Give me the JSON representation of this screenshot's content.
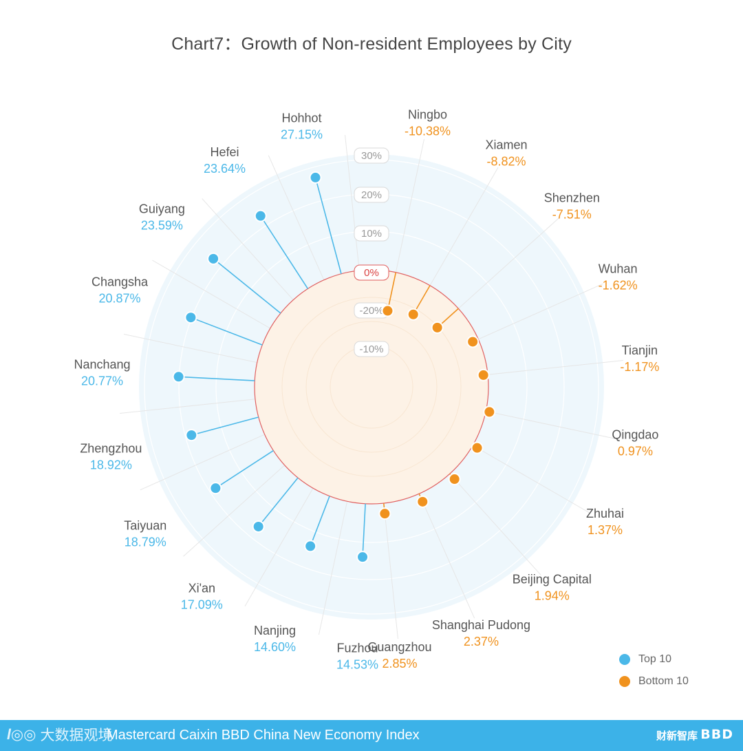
{
  "chart_data": {
    "type": "radial-lollipop",
    "title": "Chart7：Growth of Non-resident Employees by City",
    "axis_labels": [
      "30%",
      "20%",
      "10%",
      "0%",
      "-20%",
      "-10%"
    ],
    "rlim": [
      -30,
      30
    ],
    "series": [
      {
        "name": "Top 10",
        "color": "#4bb8e8",
        "points": [
          {
            "city": "Hohhot",
            "value": 27.15,
            "label": "27.15%"
          },
          {
            "city": "Hefei",
            "value": 23.64,
            "label": "23.64%"
          },
          {
            "city": "Guiyang",
            "value": 23.59,
            "label": "23.59%"
          },
          {
            "city": "Changsha",
            "value": 20.87,
            "label": "20.87%"
          },
          {
            "city": "Nanchang",
            "value": 20.77,
            "label": "20.77%"
          },
          {
            "city": "Zhengzhou",
            "value": 18.92,
            "label": "18.92%"
          },
          {
            "city": "Taiyuan",
            "value": 18.79,
            "label": "18.79%"
          },
          {
            "city": "Xi'an",
            "value": 17.09,
            "label": "17.09%"
          },
          {
            "city": "Nanjing",
            "value": 14.6,
            "label": "14.60%"
          },
          {
            "city": "Fuzhou",
            "value": 14.53,
            "label": "14.53%"
          }
        ]
      },
      {
        "name": "Bottom 10",
        "color": "#f0921e",
        "points": [
          {
            "city": "Ningbo",
            "value": -10.38,
            "label": "-10.38%"
          },
          {
            "city": "Xiamen",
            "value": -8.82,
            "label": "-8.82%"
          },
          {
            "city": "Shenzhen",
            "value": -7.51,
            "label": "-7.51%"
          },
          {
            "city": "Wuhan",
            "value": -1.62,
            "label": "-1.62%"
          },
          {
            "city": "Tianjin",
            "value": -1.17,
            "label": "-1.17%"
          },
          {
            "city": "Qingdao",
            "value": 0.97,
            "label": "0.97%"
          },
          {
            "city": "Zhuhai",
            "value": 1.37,
            "label": "1.37%"
          },
          {
            "city": "Beijing Capital",
            "value": 1.94,
            "label": "1.94%"
          },
          {
            "city": "Shanghai Pudong",
            "value": 2.37,
            "label": "2.37%"
          },
          {
            "city": "Guangzhou",
            "value": 2.85,
            "label": "2.85%"
          }
        ]
      }
    ]
  },
  "legend": {
    "top": {
      "label": "Top 10",
      "color": "#4bb8e8"
    },
    "bottom": {
      "label": "Bottom 10",
      "color": "#f0921e"
    }
  },
  "footer": {
    "watermark": "大数据观境",
    "brand": "Mastercard Caixin BBD China New Economy Index",
    "logo_cn": "财新智库",
    "logo_bbd": "BBD",
    "color": "#3cb2e8"
  }
}
